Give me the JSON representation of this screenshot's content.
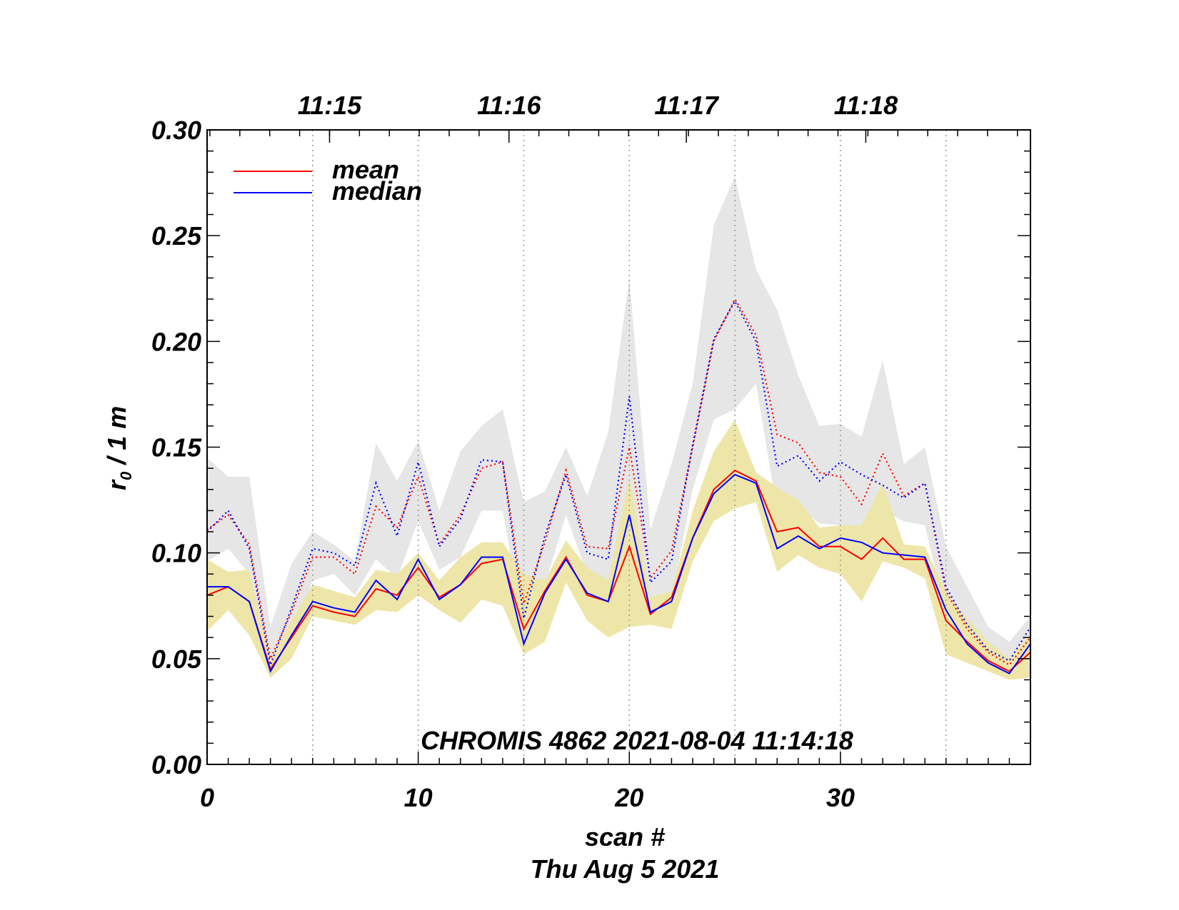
{
  "chart_data": {
    "type": "line",
    "annotation": "CHROMIS 4862 2021-08-04 11:14:18",
    "xlabel": "scan #",
    "xlabel2": "Thu Aug  5 2021",
    "ylabel_main": "r",
    "ylabel_sub": "0",
    "ylabel_rest": " / 1 m",
    "xlim": [
      0,
      39
    ],
    "ylim": [
      0,
      0.3
    ],
    "x_ticks": [
      0,
      10,
      20,
      30
    ],
    "x_tick_labels": [
      "0",
      "10",
      "20",
      "30"
    ],
    "y_ticks": [
      0,
      0.05,
      0.1,
      0.15,
      0.2,
      0.25,
      0.3
    ],
    "y_tick_labels": [
      "0.00",
      "0.05",
      "0.10",
      "0.15",
      "0.20",
      "0.25",
      "0.30"
    ],
    "time_axis": [
      {
        "x": 5.8,
        "label": "11:15"
      },
      {
        "x": 14.3,
        "label": "11:16"
      },
      {
        "x": 22.7,
        "label": "11:17"
      },
      {
        "x": 31.2,
        "label": "11:18"
      }
    ],
    "vertical_gridlines": [
      5,
      10,
      15,
      20,
      25,
      30,
      35
    ],
    "legend": [
      {
        "label": "mean",
        "color": "#ff0000"
      },
      {
        "label": "median",
        "color": "#0000ff"
      }
    ],
    "x": [
      0,
      1,
      2,
      3,
      4,
      5,
      6,
      7,
      8,
      9,
      10,
      11,
      12,
      13,
      14,
      15,
      16,
      17,
      18,
      19,
      20,
      21,
      22,
      23,
      24,
      25,
      26,
      27,
      28,
      29,
      30,
      31,
      32,
      33,
      34,
      35,
      36,
      37,
      38,
      39
    ],
    "series": [
      {
        "name": "mean",
        "color": "#ff0000",
        "style": "solid",
        "values": [
          0.08,
          0.084,
          0.077,
          0.045,
          0.06,
          0.075,
          0.072,
          0.07,
          0.083,
          0.08,
          0.093,
          0.079,
          0.085,
          0.095,
          0.097,
          0.064,
          0.082,
          0.098,
          0.08,
          0.077,
          0.103,
          0.071,
          0.079,
          0.107,
          0.13,
          0.139,
          0.134,
          0.11,
          0.112,
          0.103,
          0.103,
          0.097,
          0.107,
          0.097,
          0.097,
          0.068,
          0.058,
          0.049,
          0.044,
          0.053
        ]
      },
      {
        "name": "median",
        "color": "#0000ff",
        "style": "solid",
        "values": [
          0.084,
          0.084,
          0.077,
          0.044,
          0.061,
          0.077,
          0.074,
          0.072,
          0.087,
          0.078,
          0.097,
          0.078,
          0.085,
          0.098,
          0.098,
          0.057,
          0.081,
          0.097,
          0.081,
          0.077,
          0.118,
          0.072,
          0.077,
          0.107,
          0.128,
          0.137,
          0.133,
          0.102,
          0.108,
          0.102,
          0.107,
          0.105,
          0.1,
          0.099,
          0.098,
          0.073,
          0.057,
          0.048,
          0.043,
          0.057
        ]
      },
      {
        "name": "mean (dotted)",
        "color": "#ff0000",
        "style": "dotted",
        "values": [
          0.111,
          0.118,
          0.104,
          0.05,
          0.072,
          0.098,
          0.098,
          0.09,
          0.122,
          0.112,
          0.136,
          0.104,
          0.118,
          0.14,
          0.143,
          0.076,
          0.105,
          0.139,
          0.103,
          0.102,
          0.15,
          0.088,
          0.101,
          0.15,
          0.2,
          0.22,
          0.203,
          0.156,
          0.152,
          0.138,
          0.136,
          0.123,
          0.147,
          0.127,
          0.133,
          0.082,
          0.064,
          0.053,
          0.047,
          0.06
        ]
      },
      {
        "name": "median (dotted)",
        "color": "#0000ff",
        "style": "dotted",
        "values": [
          0.11,
          0.12,
          0.102,
          0.047,
          0.074,
          0.102,
          0.1,
          0.094,
          0.133,
          0.108,
          0.143,
          0.103,
          0.116,
          0.144,
          0.143,
          0.069,
          0.108,
          0.137,
          0.1,
          0.097,
          0.174,
          0.086,
          0.096,
          0.151,
          0.201,
          0.219,
          0.2,
          0.141,
          0.146,
          0.134,
          0.143,
          0.137,
          0.132,
          0.126,
          0.133,
          0.084,
          0.066,
          0.054,
          0.049,
          0.065
        ]
      }
    ],
    "bands": [
      {
        "name": "dotted range",
        "color": "#e6e6e6",
        "upper": [
          0.145,
          0.136,
          0.136,
          0.065,
          0.095,
          0.11,
          0.104,
          0.096,
          0.152,
          0.134,
          0.153,
          0.12,
          0.148,
          0.16,
          0.168,
          0.124,
          0.129,
          0.15,
          0.127,
          0.157,
          0.23,
          0.111,
          0.142,
          0.18,
          0.255,
          0.278,
          0.234,
          0.215,
          0.184,
          0.16,
          0.161,
          0.155,
          0.191,
          0.142,
          0.15,
          0.103,
          0.084,
          0.065,
          0.058,
          0.07
        ],
        "lower": [
          0.096,
          0.102,
          0.09,
          0.045,
          0.058,
          0.087,
          0.09,
          0.08,
          0.097,
          0.088,
          0.115,
          0.092,
          0.098,
          0.12,
          0.12,
          0.064,
          0.085,
          0.118,
          0.09,
          0.087,
          0.102,
          0.071,
          0.078,
          0.13,
          0.163,
          0.168,
          0.18,
          0.12,
          0.122,
          0.114,
          0.113,
          0.108,
          0.12,
          0.115,
          0.113,
          0.07,
          0.056,
          0.048,
          0.042,
          0.054
        ]
      },
      {
        "name": "solid range",
        "color": "#ede6a8",
        "upper": [
          0.097,
          0.091,
          0.092,
          0.05,
          0.068,
          0.085,
          0.082,
          0.079,
          0.092,
          0.09,
          0.1,
          0.087,
          0.098,
          0.105,
          0.105,
          0.09,
          0.087,
          0.106,
          0.093,
          0.087,
          0.136,
          0.079,
          0.082,
          0.12,
          0.148,
          0.163,
          0.138,
          0.131,
          0.125,
          0.112,
          0.113,
          0.113,
          0.133,
          0.104,
          0.103,
          0.081,
          0.069,
          0.058,
          0.05,
          0.062
        ]
      },
      {
        "name": "solid range lower",
        "color": "#ede6a8",
        "lower": [
          0.063,
          0.073,
          0.061,
          0.041,
          0.05,
          0.07,
          0.068,
          0.066,
          0.073,
          0.072,
          0.08,
          0.073,
          0.067,
          0.078,
          0.075,
          0.052,
          0.058,
          0.086,
          0.068,
          0.06,
          0.065,
          0.066,
          0.064,
          0.096,
          0.115,
          0.121,
          0.124,
          0.091,
          0.099,
          0.093,
          0.09,
          0.077,
          0.096,
          0.093,
          0.088,
          0.052,
          0.048,
          0.044,
          0.04,
          0.041
        ]
      }
    ]
  }
}
